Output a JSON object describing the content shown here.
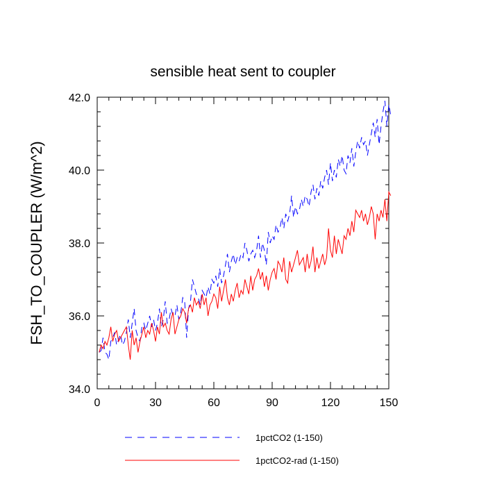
{
  "chart_data": {
    "type": "line",
    "title": "sensible heat sent to coupler",
    "xlabel": "",
    "ylabel": "FSH_TO_COUPLER  (W/m^2)",
    "xlim": [
      0,
      150
    ],
    "ylim": [
      34.0,
      42.0
    ],
    "x_ticks": [
      0,
      30,
      60,
      90,
      120,
      150
    ],
    "x_tick_labels": [
      "0",
      "30",
      "60",
      "90",
      "120",
      "150"
    ],
    "y_ticks": [
      34.0,
      36.0,
      38.0,
      40.0,
      42.0
    ],
    "y_tick_labels": [
      "34.0",
      "36.0",
      "38.0",
      "40.0",
      "42.0"
    ],
    "grid": false,
    "legend_position": "bottom",
    "series": [
      {
        "name": "1pctCO2 (1-150)",
        "color": "#0000ff",
        "dash": "dashed",
        "values": [
          35.0,
          35.05,
          35.4,
          35.0,
          34.95,
          34.8,
          35.3,
          35.4,
          35.55,
          35.2,
          35.35,
          35.5,
          35.2,
          35.3,
          35.55,
          35.9,
          35.4,
          35.8,
          36.2,
          35.6,
          35.4,
          35.3,
          35.7,
          35.8,
          35.6,
          35.8,
          36.0,
          35.7,
          35.9,
          35.6,
          35.8,
          36.2,
          35.7,
          35.9,
          36.4,
          35.8,
          35.9,
          36.2,
          36.0,
          36.0,
          36.3,
          35.9,
          36.1,
          36.5,
          36.4,
          35.4,
          36.2,
          36.4,
          37.0,
          36.8,
          36.6,
          36.5,
          36.3,
          36.7,
          36.6,
          36.5,
          36.8,
          36.6,
          37.0,
          36.9,
          37.1,
          36.8,
          37.3,
          36.9,
          37.1,
          37.4,
          37.7,
          37.2,
          37.5,
          37.7,
          37.4,
          37.6,
          37.5,
          37.7,
          37.6,
          38.0,
          37.8,
          37.5,
          37.7,
          37.8,
          37.6,
          37.8,
          38.2,
          37.6,
          38.0,
          37.8,
          37.4,
          38.3,
          38.0,
          38.2,
          38.1,
          38.5,
          38.3,
          38.4,
          38.7,
          38.4,
          38.8,
          38.6,
          38.8,
          39.3,
          38.7,
          39.0,
          38.8,
          38.9,
          39.2,
          39.0,
          39.3,
          39.2,
          39.0,
          39.4,
          39.6,
          39.2,
          39.5,
          39.3,
          39.7,
          39.5,
          39.8,
          40.0,
          39.6,
          40.2,
          39.7,
          40.0,
          39.8,
          40.3,
          40.1,
          40.4,
          40.0,
          39.9,
          40.4,
          40.2,
          40.6,
          40.1,
          40.5,
          40.8,
          40.6,
          40.9,
          40.7,
          40.8,
          40.4,
          40.7,
          41.0,
          41.3,
          40.9,
          41.4,
          40.7,
          41.2,
          41.6,
          41.9,
          41.2,
          41.8,
          41.5
        ]
      },
      {
        "name": "1pctCO2-rad (1-150)",
        "color": "#ff0000",
        "dash": "solid",
        "values": [
          35.0,
          35.2,
          35.1,
          35.3,
          35.2,
          35.4,
          35.7,
          35.3,
          35.5,
          35.6,
          35.3,
          35.4,
          35.5,
          35.6,
          35.7,
          35.2,
          34.8,
          35.6,
          35.2,
          35.4,
          35.0,
          35.3,
          35.5,
          35.7,
          35.4,
          35.6,
          35.5,
          35.8,
          35.6,
          35.3,
          35.7,
          35.5,
          36.1,
          35.7,
          35.8,
          35.6,
          35.5,
          35.9,
          36.1,
          35.5,
          35.7,
          35.9,
          36.0,
          36.2,
          36.1,
          35.8,
          36.2,
          36.3,
          36.1,
          36.5,
          36.3,
          36.4,
          36.2,
          36.6,
          36.3,
          36.5,
          36.0,
          36.3,
          36.4,
          36.6,
          36.5,
          36.2,
          36.8,
          36.4,
          36.7,
          37.0,
          36.5,
          36.3,
          36.6,
          36.4,
          36.7,
          36.9,
          36.5,
          36.7,
          36.6,
          37.0,
          36.8,
          36.6,
          37.1,
          36.7,
          37.0,
          37.1,
          37.3,
          37.0,
          37.2,
          36.8,
          37.1,
          36.7,
          37.0,
          37.2,
          37.3,
          37.0,
          37.5,
          37.4,
          37.2,
          37.6,
          37.0,
          36.9,
          37.5,
          37.2,
          37.4,
          37.6,
          37.8,
          37.4,
          37.5,
          37.6,
          37.2,
          37.7,
          37.3,
          37.5,
          37.9,
          37.2,
          37.6,
          37.3,
          37.5,
          37.7,
          37.4,
          37.6,
          38.4,
          37.8,
          37.6,
          38.2,
          37.7,
          38.1,
          37.9,
          37.7,
          38.2,
          38.1,
          38.4,
          38.2,
          38.6,
          38.3,
          38.9,
          38.8,
          38.7,
          38.9,
          38.6,
          38.8,
          38.5,
          38.7,
          39.0,
          38.8,
          38.1,
          38.8,
          38.6,
          38.9,
          38.7,
          39.2,
          38.6,
          39.4,
          39.3
        ]
      }
    ]
  }
}
